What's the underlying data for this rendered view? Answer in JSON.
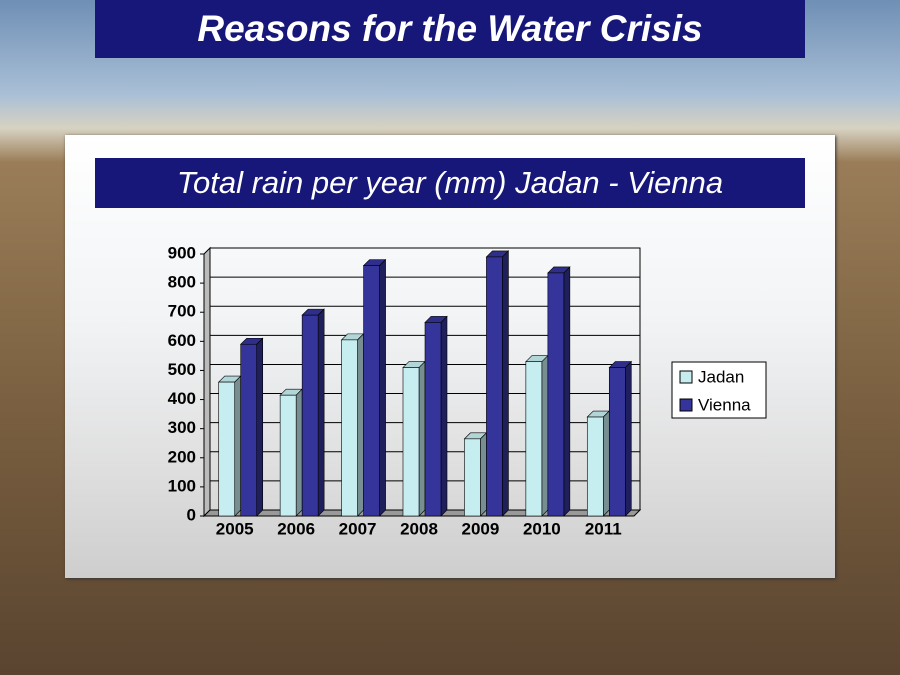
{
  "header": {
    "title": "Reasons for the Water Crisis"
  },
  "chart_data": {
    "type": "bar",
    "title": "Total rain per year (mm) Jadan - Vienna",
    "categories": [
      "2005",
      "2006",
      "2007",
      "2008",
      "2009",
      "2010",
      "2011"
    ],
    "series": [
      {
        "name": "Jadan",
        "color": "#c6eef0",
        "values": [
          460,
          415,
          605,
          510,
          265,
          530,
          340
        ]
      },
      {
        "name": "Vienna",
        "color": "#34349a",
        "values": [
          590,
          690,
          860,
          665,
          890,
          835,
          510
        ]
      }
    ],
    "ylim": [
      0,
      900
    ],
    "yticks": [
      0,
      100,
      200,
      300,
      400,
      500,
      600,
      700,
      800,
      900
    ],
    "grid": true,
    "legend": "right"
  }
}
